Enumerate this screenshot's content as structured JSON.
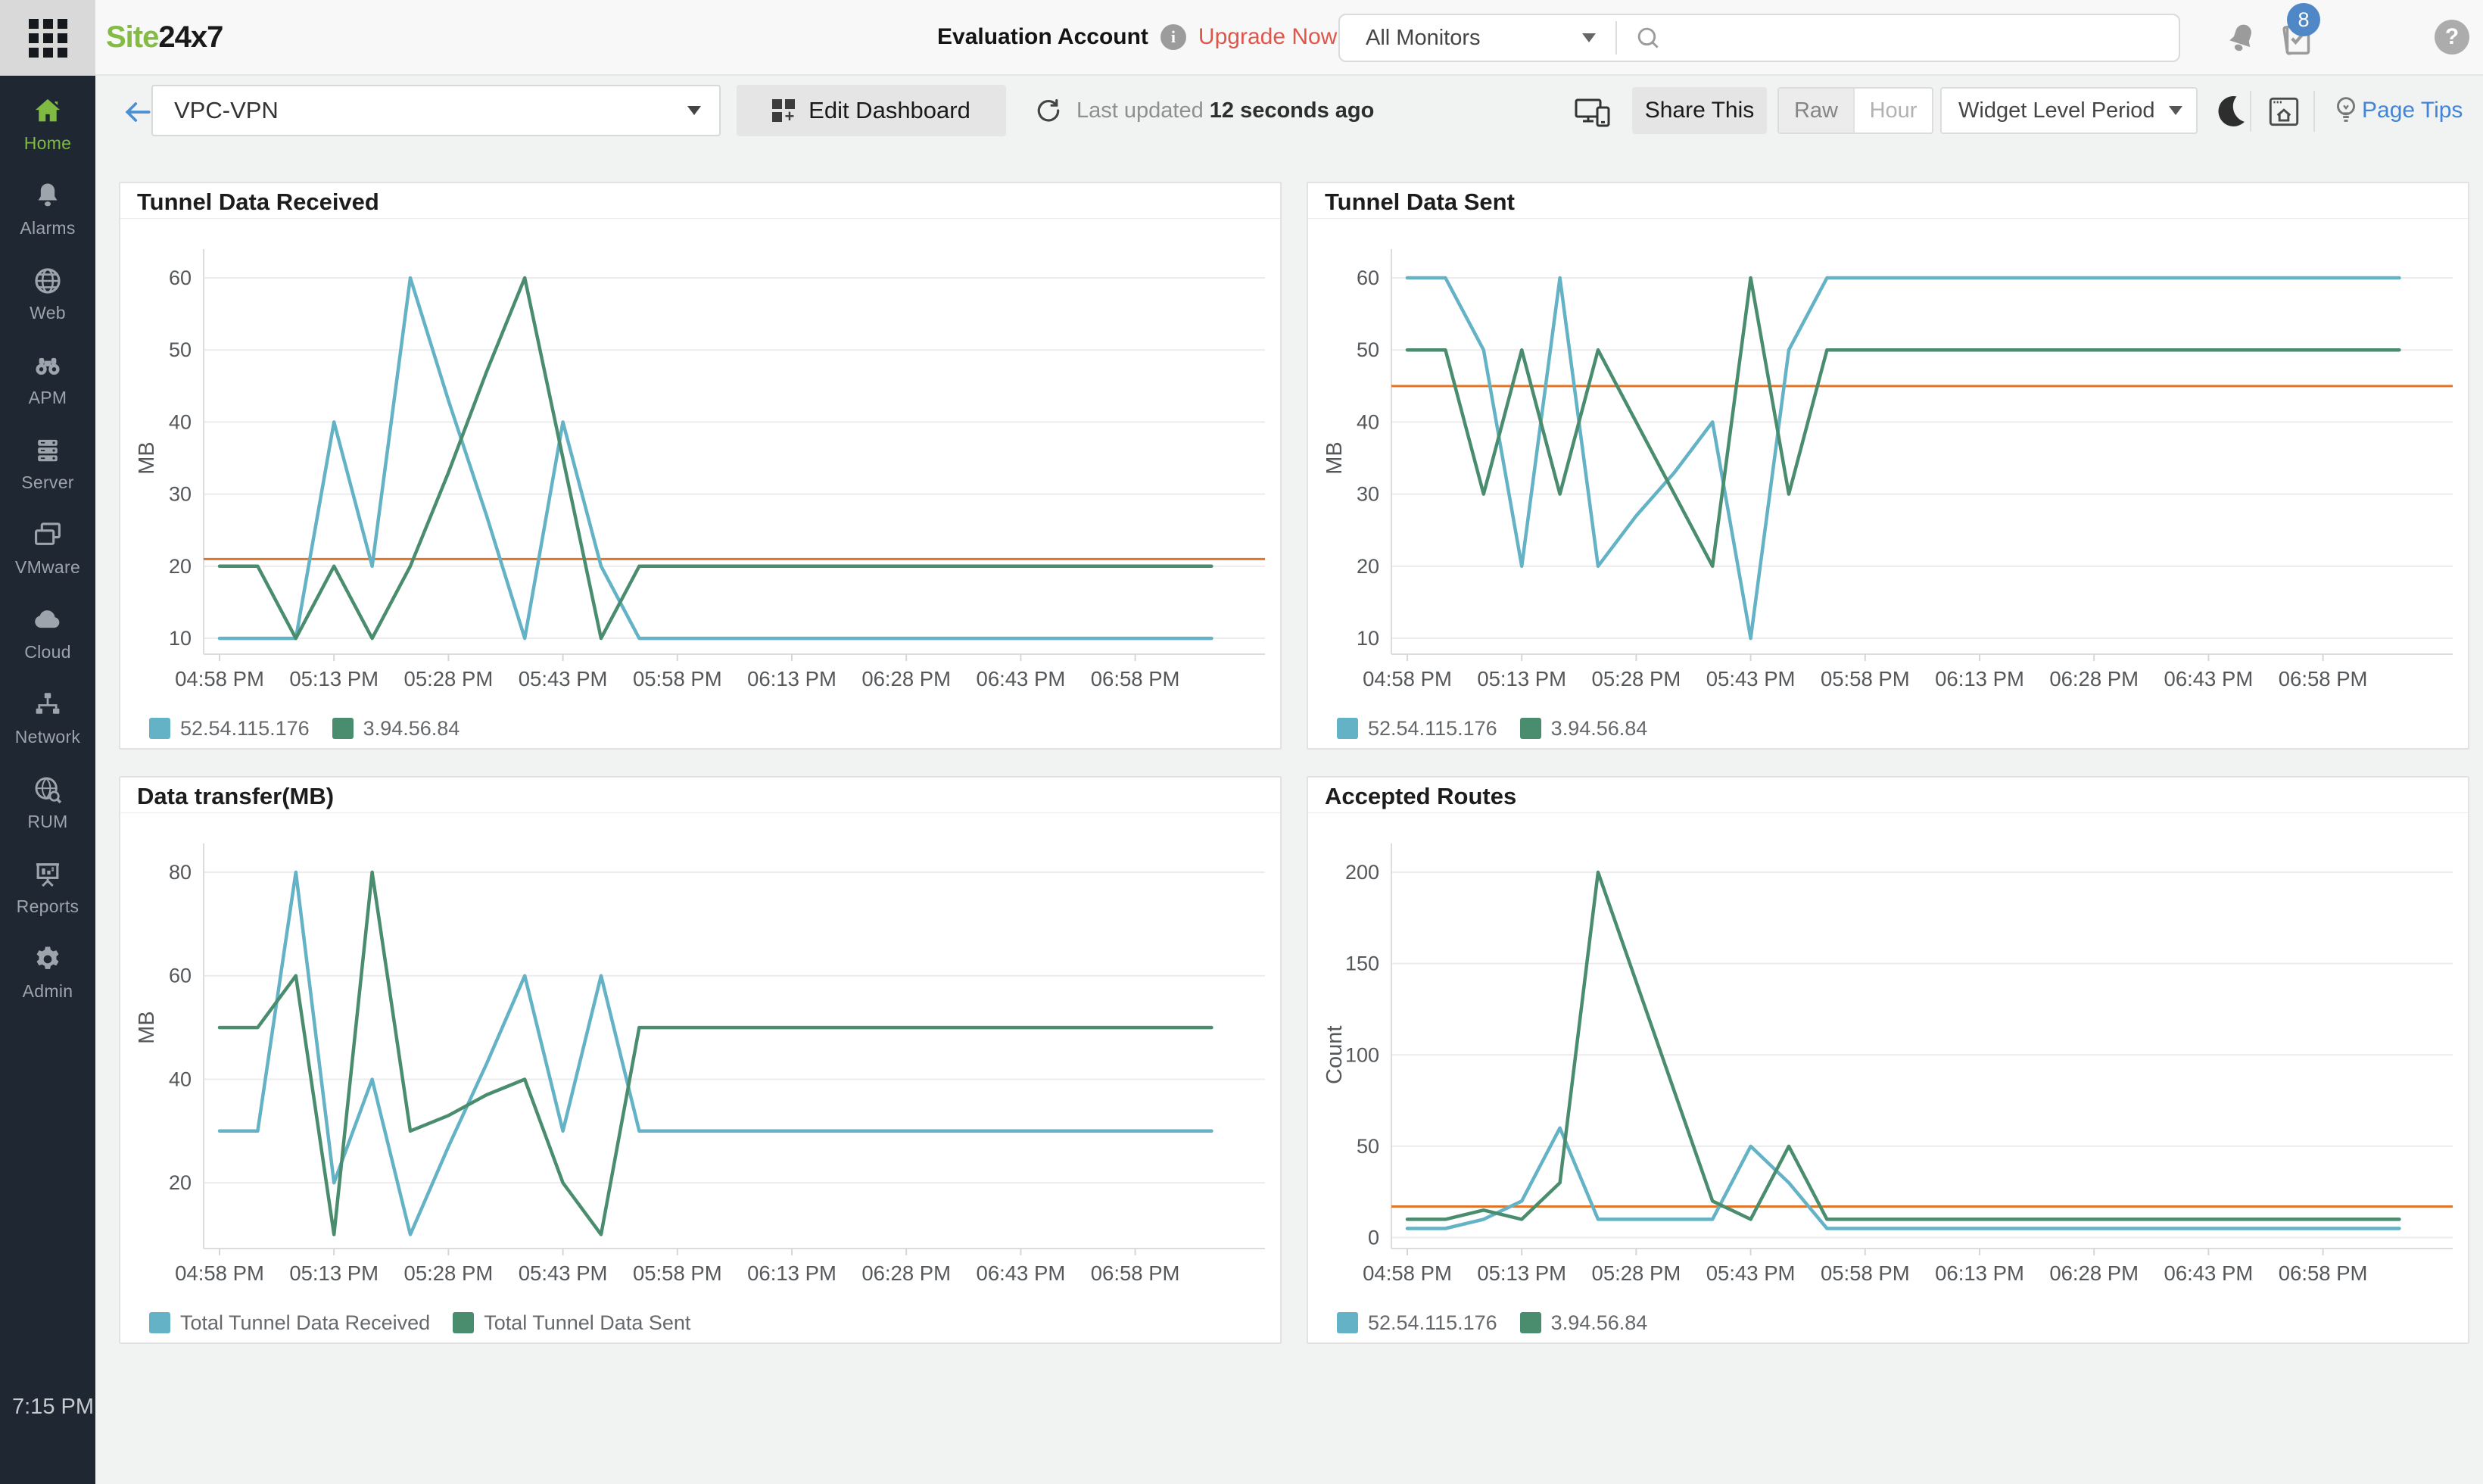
{
  "header": {
    "logo_part1": "Site",
    "logo_part2": "24x7",
    "account_label": "Evaluation Account",
    "upgrade_label": "Upgrade Now",
    "monitor_filter": "All Monitors",
    "search_value": "",
    "notification_badge": "8",
    "help_glyph": "?"
  },
  "toolbar": {
    "dashboard_name": "VPC-VPN",
    "edit_dashboard_label": "Edit Dashboard",
    "last_updated_prefix": "Last updated",
    "last_updated_value": "12 seconds ago",
    "share_label": "Share This",
    "granularity_options": [
      "Raw",
      "Hour"
    ],
    "granularity_selected": "Raw",
    "period_label": "Widget Level Period",
    "page_tips_label": "Page Tips"
  },
  "sidebar": {
    "clock": "7:15 PM",
    "items": [
      {
        "label": "Home",
        "icon": "home-icon",
        "active": true
      },
      {
        "label": "Alarms",
        "icon": "bell-icon",
        "active": false
      },
      {
        "label": "Web",
        "icon": "globe-icon",
        "active": false
      },
      {
        "label": "APM",
        "icon": "binoculars-icon",
        "active": false
      },
      {
        "label": "Server",
        "icon": "server-icon",
        "active": false
      },
      {
        "label": "VMware",
        "icon": "screens-icon",
        "active": false
      },
      {
        "label": "Cloud",
        "icon": "cloud-icon",
        "active": false
      },
      {
        "label": "Network",
        "icon": "network-icon",
        "active": false
      },
      {
        "label": "RUM",
        "icon": "rum-globe-icon",
        "active": false
      },
      {
        "label": "Reports",
        "icon": "presentation-icon",
        "active": false
      },
      {
        "label": "Admin",
        "icon": "gear-icon",
        "active": false
      }
    ]
  },
  "colors": {
    "series_teal": "#63B2C5",
    "series_green": "#4A8D6E",
    "threshold_orange": "#E0742A",
    "sidebar_active_green": "#7FBA42",
    "link_blue": "#4285D6",
    "upgrade_red": "#E0564A",
    "badge_blue": "#4F87C7"
  },
  "chart_data": [
    {
      "type": "line",
      "title": "Tunnel Data Received",
      "ylabel": "MB",
      "yticks": [
        10,
        20,
        30,
        40,
        50,
        60
      ],
      "ylim": [
        7.8,
        60
      ],
      "threshold": 21,
      "grid": "horizontal",
      "legend_position": "bottom-left",
      "interval_minutes": 5,
      "x_tick_labels": [
        "04:58 PM",
        "05:13 PM",
        "05:28 PM",
        "05:43 PM",
        "05:58 PM",
        "06:13 PM",
        "06:28 PM",
        "06:43 PM",
        "06:58 PM"
      ],
      "series": [
        {
          "name": "52.54.115.176",
          "color": "series_teal",
          "values": [
            10,
            10,
            10,
            40,
            20,
            60,
            43,
            27,
            10,
            40,
            20,
            10,
            10,
            10,
            10,
            10,
            10,
            10,
            10,
            10,
            10,
            10,
            10,
            10,
            10,
            10,
            10
          ]
        },
        {
          "name": "3.94.56.84",
          "color": "series_green",
          "values": [
            20,
            20,
            10,
            20,
            10,
            20,
            33,
            47,
            60,
            35,
            10,
            20,
            20,
            20,
            20,
            20,
            20,
            20,
            20,
            20,
            20,
            20,
            20,
            20,
            20,
            20,
            20
          ]
        }
      ]
    },
    {
      "type": "line",
      "title": "Tunnel Data Sent",
      "ylabel": "MB",
      "yticks": [
        10,
        20,
        30,
        40,
        50,
        60
      ],
      "ylim": [
        7.8,
        60
      ],
      "threshold": 45,
      "grid": "horizontal",
      "legend_position": "bottom-left",
      "interval_minutes": 5,
      "x_tick_labels": [
        "04:58 PM",
        "05:13 PM",
        "05:28 PM",
        "05:43 PM",
        "05:58 PM",
        "06:13 PM",
        "06:28 PM",
        "06:43 PM",
        "06:58 PM"
      ],
      "series": [
        {
          "name": "52.54.115.176",
          "color": "series_teal",
          "values": [
            60,
            60,
            50,
            20,
            60,
            20,
            27,
            33,
            40,
            10,
            50,
            60,
            60,
            60,
            60,
            60,
            60,
            60,
            60,
            60,
            60,
            60,
            60,
            60,
            60,
            60,
            60
          ]
        },
        {
          "name": "3.94.56.84",
          "color": "series_green",
          "values": [
            50,
            50,
            30,
            50,
            30,
            50,
            40,
            30,
            20,
            60,
            30,
            50,
            50,
            50,
            50,
            50,
            50,
            50,
            50,
            50,
            50,
            50,
            50,
            50,
            50,
            50,
            50
          ]
        }
      ]
    },
    {
      "type": "line",
      "title": "Data transfer(MB)",
      "ylabel": "MB",
      "yticks": [
        20,
        40,
        60,
        80
      ],
      "ylim": [
        7.3,
        80
      ],
      "threshold": null,
      "grid": "horizontal",
      "legend_position": "bottom-left",
      "interval_minutes": 5,
      "x_tick_labels": [
        "04:58 PM",
        "05:13 PM",
        "05:28 PM",
        "05:43 PM",
        "05:58 PM",
        "06:13 PM",
        "06:28 PM",
        "06:43 PM",
        "06:58 PM"
      ],
      "series": [
        {
          "name": "Total Tunnel Data Received",
          "color": "series_teal",
          "values": [
            30,
            30,
            80,
            20,
            40,
            10,
            27,
            43,
            60,
            30,
            60,
            30,
            30,
            30,
            30,
            30,
            30,
            30,
            30,
            30,
            30,
            30,
            30,
            30,
            30,
            30,
            30
          ]
        },
        {
          "name": "Total Tunnel Data Sent",
          "color": "series_green",
          "values": [
            50,
            50,
            60,
            10,
            80,
            30,
            33,
            37,
            40,
            20,
            10,
            50,
            50,
            50,
            50,
            50,
            50,
            50,
            50,
            50,
            50,
            50,
            50,
            50,
            50,
            50,
            50
          ]
        }
      ]
    },
    {
      "type": "line",
      "title": "Accepted Routes",
      "ylabel": "Count",
      "yticks": [
        0,
        50,
        100,
        150,
        200
      ],
      "ylim": [
        -6,
        200
      ],
      "threshold": 17,
      "grid": "horizontal",
      "legend_position": "bottom-left",
      "interval_minutes": 5,
      "x_tick_labels": [
        "04:58 PM",
        "05:13 PM",
        "05:28 PM",
        "05:43 PM",
        "05:58 PM",
        "06:13 PM",
        "06:28 PM",
        "06:43 PM",
        "06:58 PM"
      ],
      "series": [
        {
          "name": "52.54.115.176",
          "color": "series_teal",
          "values": [
            5,
            5,
            10,
            20,
            60,
            10,
            10,
            10,
            10,
            50,
            30,
            5,
            5,
            5,
            5,
            5,
            5,
            5,
            5,
            5,
            5,
            5,
            5,
            5,
            5,
            5,
            5
          ]
        },
        {
          "name": "3.94.56.84",
          "color": "series_green",
          "values": [
            10,
            10,
            15,
            10,
            30,
            200,
            140,
            80,
            20,
            10,
            50,
            10,
            10,
            10,
            10,
            10,
            10,
            10,
            10,
            10,
            10,
            10,
            10,
            10,
            10,
            10,
            10
          ]
        }
      ]
    }
  ]
}
